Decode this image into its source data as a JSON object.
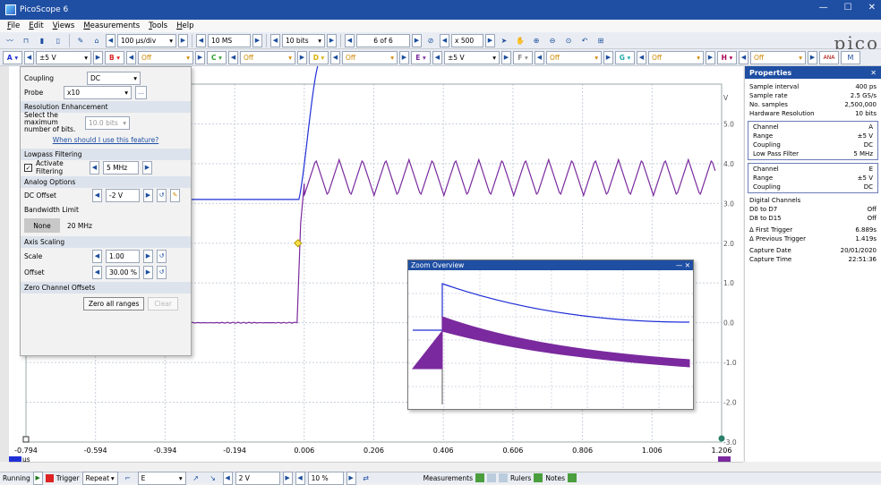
{
  "window": {
    "title": "PicoScope 6"
  },
  "menu": [
    "File",
    "Edit",
    "Views",
    "Measurements",
    "Tools",
    "Help"
  ],
  "toolbar": {
    "timebase": "100 µs/div",
    "samples": "10 MS",
    "bits": "10 bits",
    "buffer": "6 of 6",
    "zoom": "x 500",
    "logo": "pico"
  },
  "channels": [
    {
      "letter": "A",
      "range": "±5 V",
      "color": "#1f2fd6"
    },
    {
      "letter": "B",
      "range": "Off",
      "color": "#d22"
    },
    {
      "letter": "C",
      "range": "Off",
      "color": "#2a9e2a"
    },
    {
      "letter": "D",
      "range": "Off",
      "color": "#d6b000"
    },
    {
      "letter": "E",
      "range": "±5 V",
      "color": "#7a2a9e"
    },
    {
      "letter": "F",
      "range": "Off",
      "color": "#888"
    },
    {
      "letter": "G",
      "range": "Off",
      "color": "#2aa"
    },
    {
      "letter": "H",
      "range": "Off",
      "color": "#a05"
    }
  ],
  "panel": {
    "coupling_label": "Coupling",
    "coupling": "DC",
    "probe_label": "Probe",
    "probe": "x10",
    "res_title": "Resolution Enhancement",
    "res_select": "Select the maximum number of bits.",
    "res_value": "10.0 bits",
    "res_link": "When should I use this feature?",
    "lp_title": "Lowpass Filtering",
    "lp_activate": "Activate Filtering",
    "lp_value": "5 MHz",
    "analog_title": "Analog Options",
    "dc_offset_label": "DC Offset",
    "dc_offset": "-2 V",
    "bw_label": "Bandwidth Limit",
    "bw_none": "None",
    "bw_20": "20 MHz",
    "axis_title": "Axis Scaling",
    "scale_label": "Scale",
    "scale": "1.00",
    "offset_label": "Offset",
    "offset": "30.00 %",
    "zero_title": "Zero Channel Offsets",
    "zero_all": "Zero all ranges",
    "clear": "Clear"
  },
  "axes": {
    "x_ticks": [
      "-0.794",
      "-0.594",
      "-0.394",
      "-0.194",
      "0.006",
      "0.206",
      "0.406",
      "0.606",
      "0.806",
      "1.006",
      "1.206"
    ],
    "x_unit": "µs",
    "y_unit": "V",
    "y_ticks": [
      "5.0",
      "4.0",
      "3.0",
      "2.0",
      "1.0",
      "0.0",
      "-1.0",
      "-2.0",
      "-3.0"
    ]
  },
  "zoom_overview": {
    "title": "Zoom Overview"
  },
  "properties": {
    "title": "Properties",
    "general": [
      [
        "Sample interval",
        "400 ps"
      ],
      [
        "Sample rate",
        "2.5 GS/s"
      ],
      [
        "No. samples",
        "2,500,000"
      ],
      [
        "Hardware Resolution",
        "10 bits"
      ]
    ],
    "chA": [
      [
        "Channel",
        "A"
      ],
      [
        "Range",
        "±5 V"
      ],
      [
        "Coupling",
        "DC"
      ],
      [
        "Low Pass Filter",
        "5 MHz"
      ]
    ],
    "chE": [
      [
        "Channel",
        "E"
      ],
      [
        "Range",
        "±5 V"
      ],
      [
        "Coupling",
        "DC"
      ]
    ],
    "digital_title": "Digital Channels",
    "digital": [
      [
        "D0 to D7",
        "Off"
      ],
      [
        "D8 to D15",
        "Off"
      ]
    ],
    "trig": [
      [
        "Δ First Trigger",
        "6.889s"
      ],
      [
        "Δ Previous Trigger",
        "1.419s"
      ]
    ],
    "capture": [
      [
        "Capture Date",
        "20/01/2020"
      ],
      [
        "Capture Time",
        "22:51:36"
      ]
    ]
  },
  "status": {
    "running": "Running",
    "trigger": "Trigger",
    "mode": "Repeat",
    "source": "E",
    "level": "2 V",
    "pre": "10 %",
    "measurements": "Measurements",
    "rulers": "Rulers",
    "notes": "Notes"
  }
}
